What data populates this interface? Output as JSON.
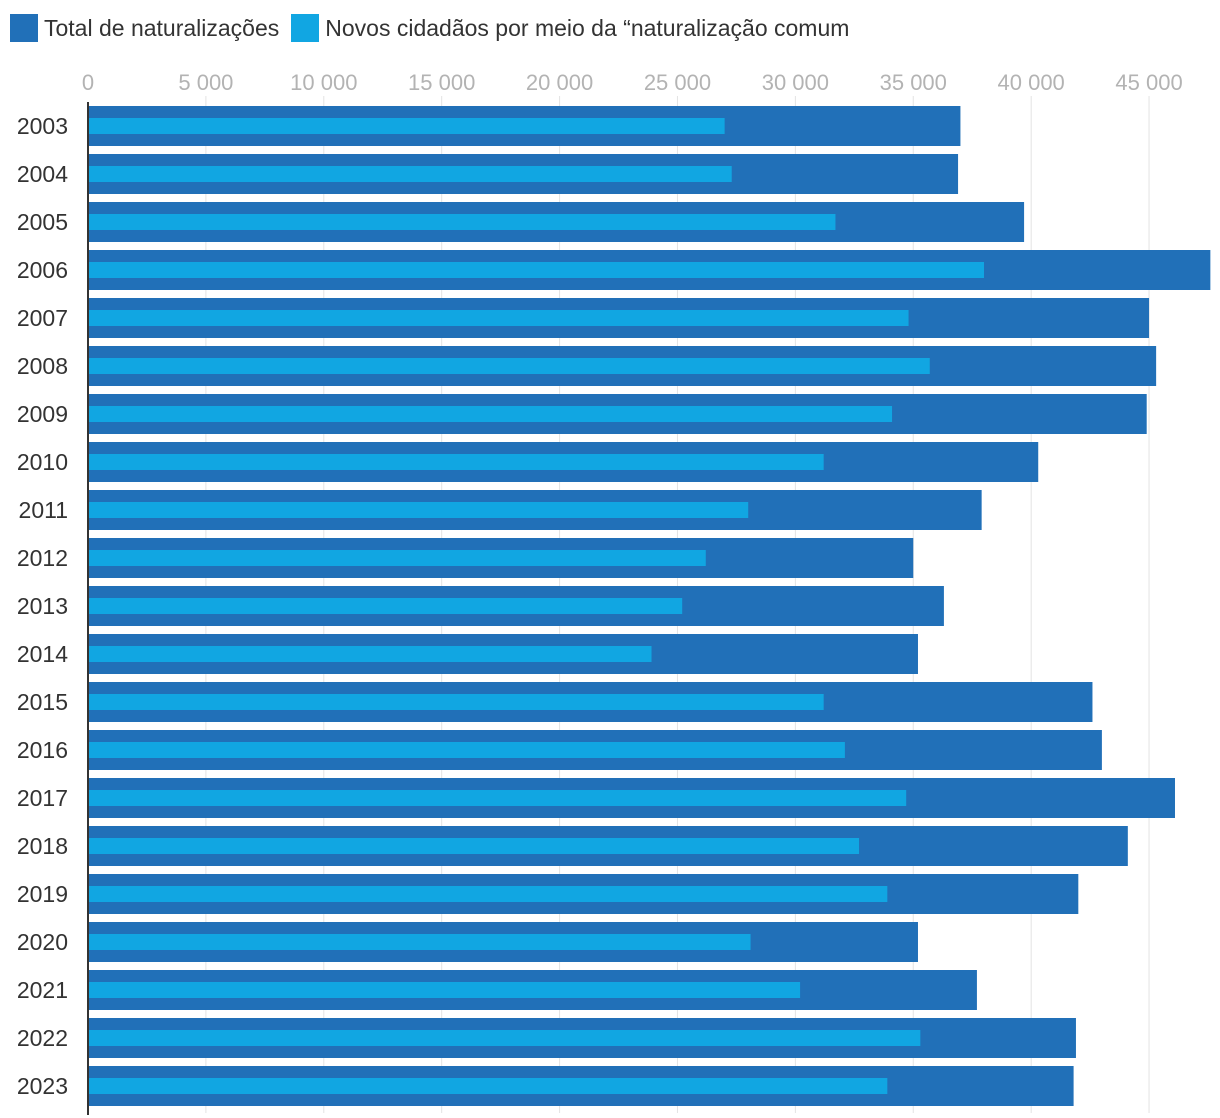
{
  "colors": {
    "total": "#2170b8",
    "comum": "#11a6e2",
    "grid": "#e3e3e3",
    "axis": "#333333"
  },
  "legend": [
    {
      "label": "Total de naturalizações",
      "color": "#2170b8"
    },
    {
      "label": "Novos cidadãos por meio da “naturalização comum",
      "color": "#11a6e2"
    }
  ],
  "chart_data": {
    "type": "bar",
    "orientation": "horizontal",
    "title": "",
    "xlabel": "",
    "ylabel": "",
    "xlim": [
      0,
      47500
    ],
    "xticks": [
      0,
      5000,
      10000,
      15000,
      20000,
      25000,
      30000,
      35000,
      40000,
      45000
    ],
    "xtick_labels": [
      "0",
      "5 000",
      "10 000",
      "15 000",
      "20 000",
      "25 000",
      "30 000",
      "35 000",
      "40 000",
      "45 000"
    ],
    "grid": true,
    "legend_position": "top-left",
    "categories": [
      "2003",
      "2004",
      "2005",
      "2006",
      "2007",
      "2008",
      "2009",
      "2010",
      "2011",
      "2012",
      "2013",
      "2014",
      "2015",
      "2016",
      "2017",
      "2018",
      "2019",
      "2020",
      "2021",
      "2022",
      "2023"
    ],
    "series": [
      {
        "name": "Total de naturalizações",
        "values": [
          37000,
          36900,
          39700,
          47600,
          45000,
          45300,
          44900,
          40300,
          37900,
          35000,
          36300,
          35200,
          42600,
          43000,
          46100,
          44100,
          42000,
          35200,
          37700,
          41900,
          41800
        ]
      },
      {
        "name": "Novos cidadãos por meio da “naturalização comum",
        "values": [
          27000,
          27300,
          31700,
          38000,
          34800,
          35700,
          34100,
          31200,
          28000,
          26200,
          25200,
          23900,
          31200,
          32100,
          34700,
          32700,
          33900,
          28100,
          30200,
          35300,
          33900
        ]
      }
    ]
  }
}
